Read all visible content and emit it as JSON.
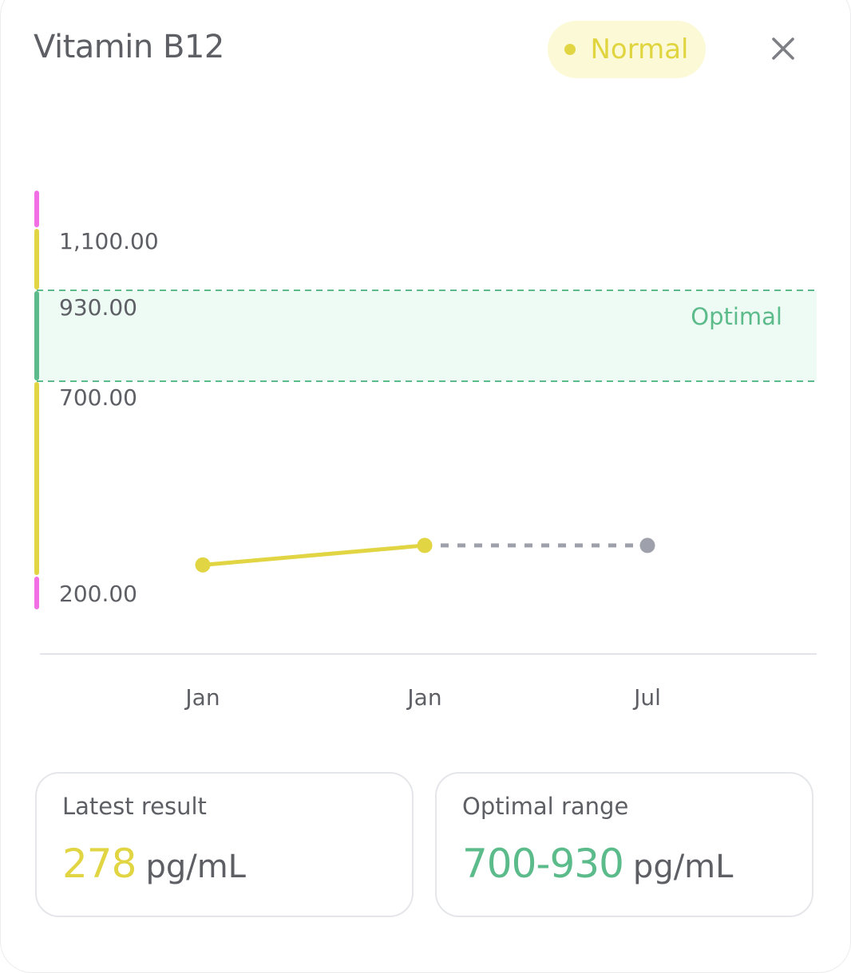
{
  "header": {
    "title": "Vitamin B12",
    "status_label": "Normal",
    "close_icon": "close-icon"
  },
  "colors": {
    "normal": "#e1d544",
    "optimal": "#5cbb8a",
    "out_of_range": "#f26ee5",
    "future": "#9ea1ab",
    "optimal_band": "#eefaf4"
  },
  "chart_data": {
    "type": "line",
    "y_ticks": [
      "1,100.00",
      "930.00",
      "700.00",
      "200.00"
    ],
    "band_label": "Optimal",
    "x_labels": [
      "Jan",
      "Jan",
      "Jul"
    ],
    "series": [
      {
        "values": [
          228,
          278
        ],
        "style": "solid",
        "color": "#e1d544"
      },
      {
        "values": [
          278,
          278
        ],
        "style": "dashed",
        "color": "#9ea1ab"
      }
    ],
    "points": [
      {
        "label": "Jan",
        "value": 228,
        "color": "#e1d544"
      },
      {
        "label": "Jan",
        "value": 278,
        "color": "#e1d544"
      },
      {
        "label": "Jul",
        "value": 278,
        "color": "#9ea1ab"
      }
    ],
    "optimal_range": [
      700,
      930
    ],
    "scale_segments": [
      {
        "from": 1100,
        "to": 1200,
        "color": "#f26ee5"
      },
      {
        "from": 930,
        "to": 1100,
        "color": "#e1d544"
      },
      {
        "from": 700,
        "to": 930,
        "color": "#5cbb8a"
      },
      {
        "from": 200,
        "to": 700,
        "color": "#e1d544"
      },
      {
        "from": 0,
        "to": 200,
        "color": "#f26ee5"
      }
    ]
  },
  "cards": {
    "latest": {
      "title": "Latest result",
      "value": "278",
      "unit": "pg/mL"
    },
    "optimal": {
      "title": "Optimal range",
      "value": "700-930",
      "unit": "pg/mL"
    }
  }
}
